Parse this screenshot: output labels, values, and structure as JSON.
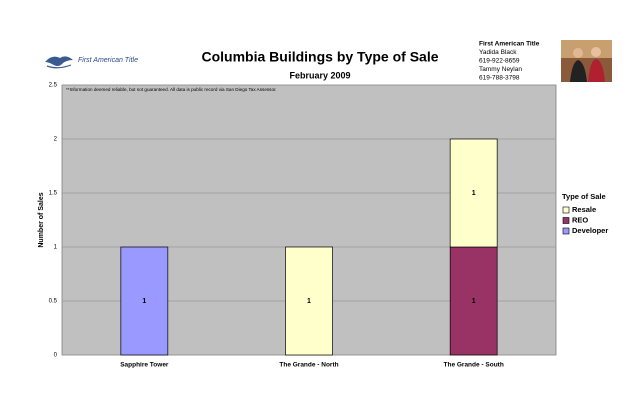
{
  "header": {
    "logo": "First American Title",
    "contact": [
      "First American Title",
      "Yadida Black",
      "619-922-8659",
      "Tammy Neylan",
      "619-788-3798"
    ]
  },
  "chart_data": {
    "type": "stacked_bar",
    "title": "Columbia Buildings by Type of Sale",
    "subtitle": "February 2009",
    "note": "**Information deemed reliable, but not guaranteed.  All data is public record via San Diego Tax Assessor.",
    "y_label": "Number of Sales",
    "legend_title": "Type of Sale",
    "categories": [
      "Sapphire Tower",
      "The Grande - North",
      "The Grande - South"
    ],
    "series": [
      {
        "name": "Resale",
        "color": "#ffffcc",
        "values": [
          0,
          1,
          1
        ]
      },
      {
        "name": "REO",
        "color": "#993366",
        "values": [
          0,
          0,
          1
        ]
      },
      {
        "name": "Developer",
        "color": "#9999ff",
        "values": [
          1,
          0,
          0
        ]
      }
    ],
    "ylim": [
      0,
      2.5
    ],
    "yticks": [
      0,
      0.5,
      1,
      1.5,
      2,
      2.5
    ],
    "grid": true,
    "legend": "right"
  }
}
